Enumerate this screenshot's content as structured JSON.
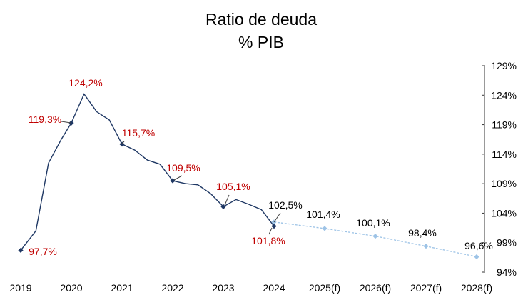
{
  "chart_data": {
    "type": "line",
    "title": "Ratio de deuda",
    "subtitle": "% PIB",
    "x_labels": [
      "2019",
      "2020",
      "2021",
      "2022",
      "2023",
      "2024",
      "2025(f)",
      "2026(f)",
      "2027(f)",
      "2028(f)"
    ],
    "y_ticks": [
      "94%",
      "99%",
      "104%",
      "109%",
      "114%",
      "119%",
      "124%",
      "129%"
    ],
    "ylim": [
      94,
      129
    ],
    "y_axis_side": "right",
    "grid": false,
    "series": [
      {
        "points": [
          {
            "x": 2019.0,
            "y": 97.7
          },
          {
            "x": 2019.3,
            "y": 101.0
          },
          {
            "x": 2019.55,
            "y": 112.5
          },
          {
            "x": 2019.8,
            "y": 116.5
          },
          {
            "x": 2020.0,
            "y": 119.3
          },
          {
            "x": 2020.25,
            "y": 124.2
          },
          {
            "x": 2020.5,
            "y": 121.2
          },
          {
            "x": 2020.75,
            "y": 119.8
          },
          {
            "x": 2021.0,
            "y": 115.7
          },
          {
            "x": 2021.25,
            "y": 114.7
          },
          {
            "x": 2021.5,
            "y": 113.0
          },
          {
            "x": 2021.75,
            "y": 112.3
          },
          {
            "x": 2022.0,
            "y": 109.5
          },
          {
            "x": 2022.25,
            "y": 109.0
          },
          {
            "x": 2022.5,
            "y": 108.8
          },
          {
            "x": 2022.75,
            "y": 107.3
          },
          {
            "x": 2023.0,
            "y": 105.1
          },
          {
            "x": 2023.25,
            "y": 106.3
          },
          {
            "x": 2023.5,
            "y": 105.5
          },
          {
            "x": 2023.75,
            "y": 104.6
          },
          {
            "x": 2024.0,
            "y": 101.8
          }
        ],
        "color": "#1f3864",
        "style": "solid"
      },
      {
        "points": [
          {
            "x": 2024.0,
            "y": 102.5
          },
          {
            "x": 2025.0,
            "y": 101.4
          },
          {
            "x": 2026.0,
            "y": 100.1
          },
          {
            "x": 2027.0,
            "y": 98.4
          },
          {
            "x": 2028.0,
            "y": 96.6
          }
        ],
        "color": "#9dc3e6",
        "style": "dashed"
      }
    ],
    "markers": [
      {
        "x": 2019,
        "y": 97.7,
        "color": "#1f3864"
      },
      {
        "x": 2020,
        "y": 119.3,
        "color": "#1f3864"
      },
      {
        "x": 2021,
        "y": 115.7,
        "color": "#1f3864"
      },
      {
        "x": 2022,
        "y": 109.5,
        "color": "#1f3864"
      },
      {
        "x": 2023,
        "y": 105.1,
        "color": "#1f3864"
      },
      {
        "x": 2024,
        "y": 101.8,
        "color": "#1f3864"
      },
      {
        "x": 2024,
        "y": 102.5,
        "color": "#9dc3e6"
      },
      {
        "x": 2025,
        "y": 101.4,
        "color": "#9dc3e6"
      },
      {
        "x": 2026,
        "y": 100.1,
        "color": "#9dc3e6"
      },
      {
        "x": 2027,
        "y": 98.4,
        "color": "#9dc3e6"
      },
      {
        "x": 2028,
        "y": 96.6,
        "color": "#9dc3e6"
      }
    ],
    "data_labels": [
      {
        "text": "97,7%",
        "color": "#c00000"
      },
      {
        "text": "119,3%",
        "color": "#c00000"
      },
      {
        "text": "124,2%",
        "color": "#c00000"
      },
      {
        "text": "115,7%",
        "color": "#c00000"
      },
      {
        "text": "109,5%",
        "color": "#c00000"
      },
      {
        "text": "105,1%",
        "color": "#c00000"
      },
      {
        "text": "101,8%",
        "color": "#c00000"
      },
      {
        "text": "102,5%",
        "color": "#000000"
      },
      {
        "text": "101,4%",
        "color": "#000000"
      },
      {
        "text": "100,1%",
        "color": "#000000"
      },
      {
        "text": "98,4%",
        "color": "#000000"
      },
      {
        "text": "96,6%",
        "color": "#000000"
      }
    ]
  }
}
